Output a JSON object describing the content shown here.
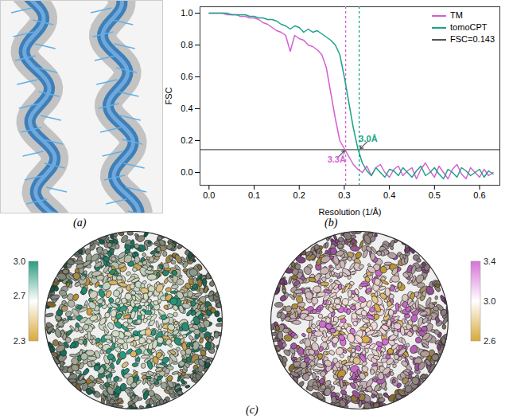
{
  "panel_labels": [
    "(a)",
    "(b)",
    "(c)"
  ],
  "chart_data": {
    "type": "line",
    "xlabel": "Resolution (1/Å)",
    "ylabel": "FSC",
    "x": [
      0,
      0.01,
      0.02,
      0.03,
      0.04,
      0.05,
      0.06,
      0.07,
      0.08,
      0.09,
      0.1,
      0.11,
      0.12,
      0.13,
      0.14,
      0.15,
      0.16,
      0.17,
      0.18,
      0.19,
      0.2,
      0.21,
      0.22,
      0.23,
      0.24,
      0.25,
      0.26,
      0.27,
      0.28,
      0.29,
      0.3,
      0.31,
      0.32,
      0.33,
      0.34,
      0.35,
      0.36,
      0.37,
      0.38,
      0.39,
      0.4,
      0.41,
      0.42,
      0.43,
      0.44,
      0.45,
      0.46,
      0.47,
      0.48,
      0.49,
      0.5,
      0.51,
      0.52,
      0.53,
      0.54,
      0.55,
      0.56,
      0.57,
      0.58,
      0.59,
      0.6,
      0.61,
      0.62,
      0.63
    ],
    "series": [
      {
        "name": "TM",
        "color": "#d45fd4",
        "values": [
          1.0,
          1.0,
          1.0,
          1.0,
          0.99,
          0.99,
          0.99,
          0.98,
          0.98,
          0.97,
          0.97,
          0.96,
          0.94,
          0.93,
          0.91,
          0.89,
          0.88,
          0.86,
          0.76,
          0.86,
          0.84,
          0.83,
          0.8,
          0.79,
          0.77,
          0.74,
          0.66,
          0.5,
          0.34,
          0.2,
          0.15,
          0.1,
          0.05,
          0.02,
          0.0,
          0.04,
          -0.02,
          0.03,
          0.05,
          0.0,
          -0.03,
          0.02,
          0.04,
          -0.02,
          0.01,
          0.03,
          -0.04,
          0.02,
          0.06,
          0.01,
          -0.03,
          0.04,
          0.0,
          -0.04,
          0.02,
          0.05,
          -0.01,
          -0.04,
          0.03,
          0.0,
          -0.03,
          0.02,
          -0.02,
          0.0
        ]
      },
      {
        "name": "tomoCPT",
        "color": "#1aa385",
        "values": [
          1.0,
          1.0,
          1.0,
          1.0,
          1.0,
          0.99,
          0.99,
          0.99,
          0.99,
          0.98,
          0.98,
          0.97,
          0.97,
          0.96,
          0.96,
          0.95,
          0.93,
          0.92,
          0.9,
          0.92,
          0.91,
          0.88,
          0.9,
          0.88,
          0.89,
          0.87,
          0.85,
          0.83,
          0.8,
          0.74,
          0.6,
          0.44,
          0.28,
          0.15,
          0.06,
          0.01,
          -0.02,
          0.03,
          0.0,
          -0.03,
          0.02,
          0.01,
          -0.02,
          0.03,
          0.0,
          -0.03,
          0.01,
          0.04,
          -0.02,
          0.0,
          0.03,
          -0.01,
          -0.04,
          0.02,
          0.0,
          -0.03,
          0.03,
          0.01,
          -0.02,
          0.0,
          0.02,
          -0.03,
          0.01,
          -0.01
        ]
      }
    ],
    "threshold": {
      "name": "FSC=0.143",
      "value": 0.143,
      "color": "#555555"
    },
    "annotations": [
      {
        "text": "3.3Å",
        "x": 0.303,
        "color": "#d45fd4"
      },
      {
        "text": "3.0Å",
        "x": 0.333,
        "color": "#1aa385"
      }
    ],
    "xlim": [
      -0.02,
      0.645
    ],
    "ylim": [
      -0.08,
      1.04
    ],
    "xticks": [
      {
        "value": 0,
        "label": "0.0"
      },
      0.1,
      0.2,
      0.3,
      0.4,
      0.5,
      0.6
    ],
    "yticks": [
      {
        "value": 0,
        "label": "0.0"
      },
      0.2,
      0.4,
      0.6,
      0.8,
      {
        "value": 1,
        "label": "1.0"
      }
    ],
    "legend": "top-right"
  },
  "color_bars": [
    {
      "range": [
        2.3,
        3.0
      ],
      "ticks": [
        {
          "value": 3,
          "label": "3.0"
        },
        2.7,
        2.3
      ],
      "colors": [
        "#d8a93c",
        "#ffffff",
        "#2a9d80"
      ]
    },
    {
      "range": [
        2.6,
        3.4
      ],
      "ticks": [
        3.4,
        {
          "value": 3,
          "label": "3.0"
        },
        2.6
      ],
      "colors": [
        "#d8a93c",
        "#ffffff",
        "#d672d6"
      ]
    }
  ]
}
